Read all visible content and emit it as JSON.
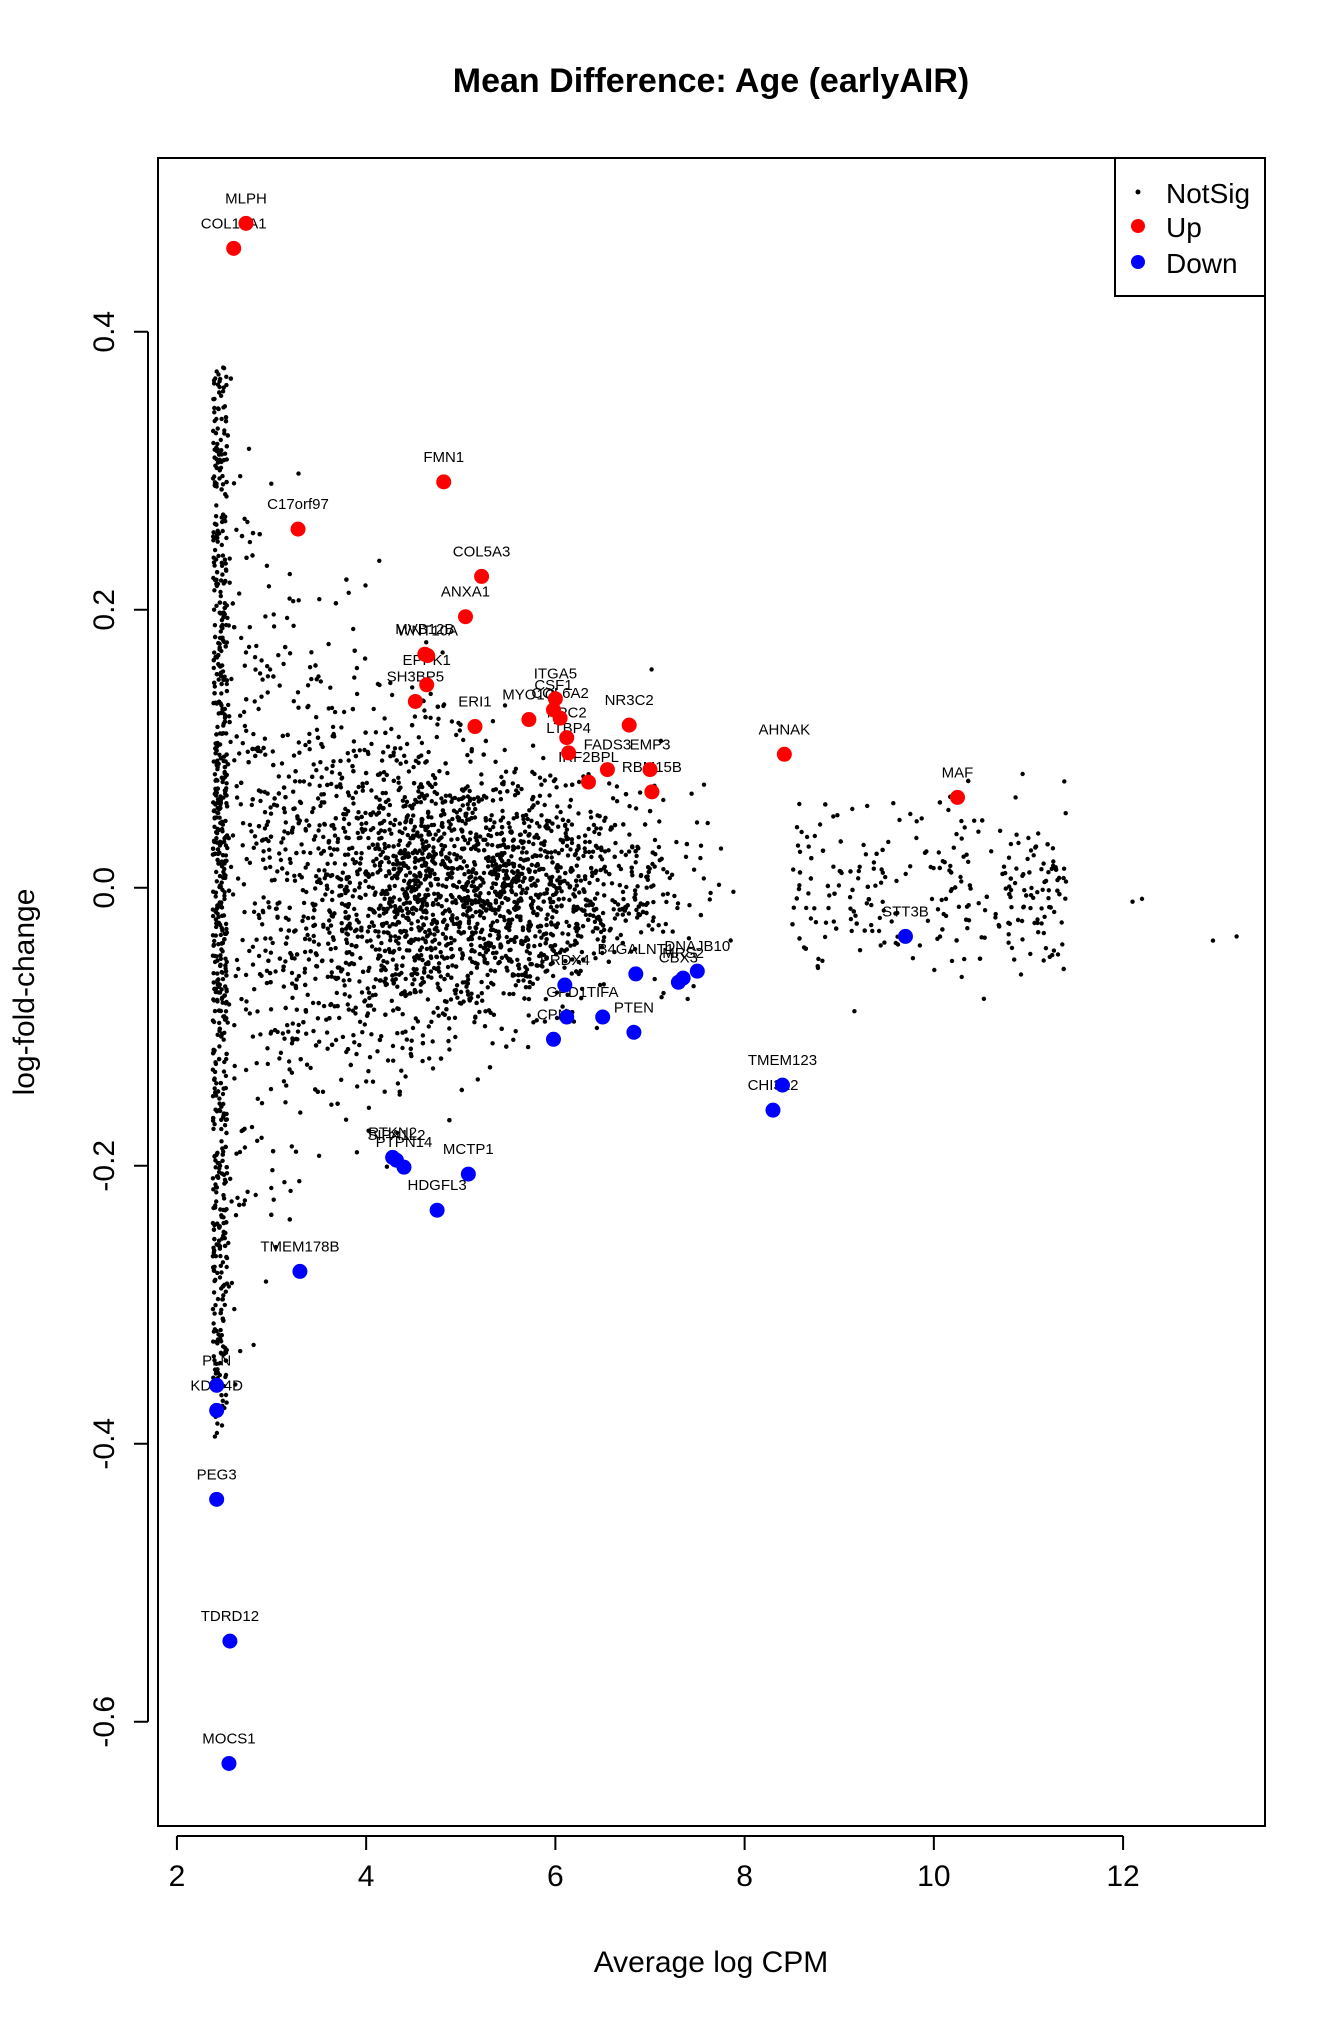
{
  "chart_data": {
    "type": "scatter",
    "title": "Mean Difference: Age (earlyAIR)",
    "xlabel": "Average log CPM",
    "ylabel": "log-fold-change",
    "xlim": [
      1.8,
      13.5
    ],
    "ylim": [
      -0.675,
      0.525
    ],
    "x_ticks": [
      2,
      4,
      6,
      8,
      10,
      12
    ],
    "y_ticks": [
      -0.6,
      -0.4,
      -0.2,
      0.0,
      0.2,
      0.4
    ],
    "x_tick_labels": [
      "2",
      "4",
      "6",
      "8",
      "10",
      "12"
    ],
    "y_tick_labels": [
      "-0.6",
      "-0.4",
      "-0.2",
      "0.0",
      "0.2",
      "0.4"
    ],
    "grid": false,
    "legend_position": "top-right",
    "legend": [
      {
        "label": "NotSig",
        "color": "#000000",
        "marker": "small-dot"
      },
      {
        "label": "Up",
        "color": "#ff0000",
        "marker": "large-dot"
      },
      {
        "label": "Down",
        "color": "#0000ff",
        "marker": "large-dot"
      }
    ],
    "series": [
      {
        "name": "Up",
        "color": "#ff0000",
        "points": [
          {
            "label": "MLPH",
            "x": 2.73,
            "y": 0.478
          },
          {
            "label": "COL19A1",
            "x": 2.6,
            "y": 0.46
          },
          {
            "label": "FMN1",
            "x": 4.82,
            "y": 0.292
          },
          {
            "label": "C17orf97",
            "x": 3.28,
            "y": 0.258
          },
          {
            "label": "COL5A3",
            "x": 5.22,
            "y": 0.224
          },
          {
            "label": "ANXA1",
            "x": 5.05,
            "y": 0.195
          },
          {
            "label": "MVB12B",
            "x": 4.62,
            "y": 0.168
          },
          {
            "label": "WNT10A",
            "x": 4.65,
            "y": 0.167
          },
          {
            "label": "EPPK1",
            "x": 4.64,
            "y": 0.146
          },
          {
            "label": "SH3BP5",
            "x": 4.52,
            "y": 0.134
          },
          {
            "label": "ITGA5",
            "x": 6.0,
            "y": 0.136
          },
          {
            "label": "CSF1",
            "x": 5.98,
            "y": 0.128
          },
          {
            "label": "MYO1C",
            "x": 5.72,
            "y": 0.121
          },
          {
            "label": "COL6A2",
            "x": 6.05,
            "y": 0.122
          },
          {
            "label": "ERI1",
            "x": 5.15,
            "y": 0.116
          },
          {
            "label": "NR3C2",
            "x": 6.78,
            "y": 0.117
          },
          {
            "label": "NPC2",
            "x": 6.12,
            "y": 0.108
          },
          {
            "label": "LTBP4",
            "x": 6.14,
            "y": 0.097
          },
          {
            "label": "EMP3",
            "x": 7.0,
            "y": 0.085
          },
          {
            "label": "IRF2BPL",
            "x": 6.35,
            "y": 0.076
          },
          {
            "label": "FADS3",
            "x": 6.55,
            "y": 0.085
          },
          {
            "label": "RBM15B",
            "x": 7.02,
            "y": 0.069
          },
          {
            "label": "AHNAK",
            "x": 8.42,
            "y": 0.096
          },
          {
            "label": "MAF",
            "x": 10.25,
            "y": 0.065
          }
        ]
      },
      {
        "name": "Down",
        "color": "#0000ff",
        "points": [
          {
            "label": "STT3B",
            "x": 9.7,
            "y": -0.035
          },
          {
            "label": "DNAJB10",
            "x": 7.5,
            "y": -0.06
          },
          {
            "label": "MRS2",
            "x": 7.35,
            "y": -0.065
          },
          {
            "label": "B4GALNT1",
            "x": 6.85,
            "y": -0.062
          },
          {
            "label": "PRDX4",
            "x": 6.1,
            "y": -0.07
          },
          {
            "label": "GPD1",
            "x": 6.12,
            "y": -0.093
          },
          {
            "label": "TIFA",
            "x": 6.5,
            "y": -0.093
          },
          {
            "label": "CBX3",
            "x": 7.3,
            "y": -0.068
          },
          {
            "label": "PTEN",
            "x": 6.83,
            "y": -0.104
          },
          {
            "label": "CPM",
            "x": 5.98,
            "y": -0.109
          },
          {
            "label": "TMEM123",
            "x": 8.4,
            "y": -0.142
          },
          {
            "label": "CHI3L2",
            "x": 8.3,
            "y": -0.16
          },
          {
            "label": "RTKN2",
            "x": 4.28,
            "y": -0.194
          },
          {
            "label": "SIPA1L2",
            "x": 4.32,
            "y": -0.196
          },
          {
            "label": "PTPN14",
            "x": 4.4,
            "y": -0.201
          },
          {
            "label": "MCTP1",
            "x": 5.08,
            "y": -0.206
          },
          {
            "label": "HDGFL3",
            "x": 4.75,
            "y": -0.232
          },
          {
            "label": "TMEM178B",
            "x": 3.3,
            "y": -0.276
          },
          {
            "label": "PLN",
            "x": 2.42,
            "y": -0.358
          },
          {
            "label": "KDM4D",
            "x": 2.42,
            "y": -0.376
          },
          {
            "label": "PEG3",
            "x": 2.42,
            "y": -0.44
          },
          {
            "label": "TDRD12",
            "x": 2.56,
            "y": -0.542
          },
          {
            "label": "MOCS1",
            "x": 2.55,
            "y": -0.63
          }
        ]
      },
      {
        "name": "NotSig",
        "color": "#000000",
        "note_points": "dense cloud of several thousand non-significant genes centred near y = 0, spread roughly proportional to 1/sqrt(CPM)",
        "x_range": [
          2.38,
          13.2
        ],
        "y_range": [
          -0.395,
          0.376
        ]
      }
    ]
  }
}
